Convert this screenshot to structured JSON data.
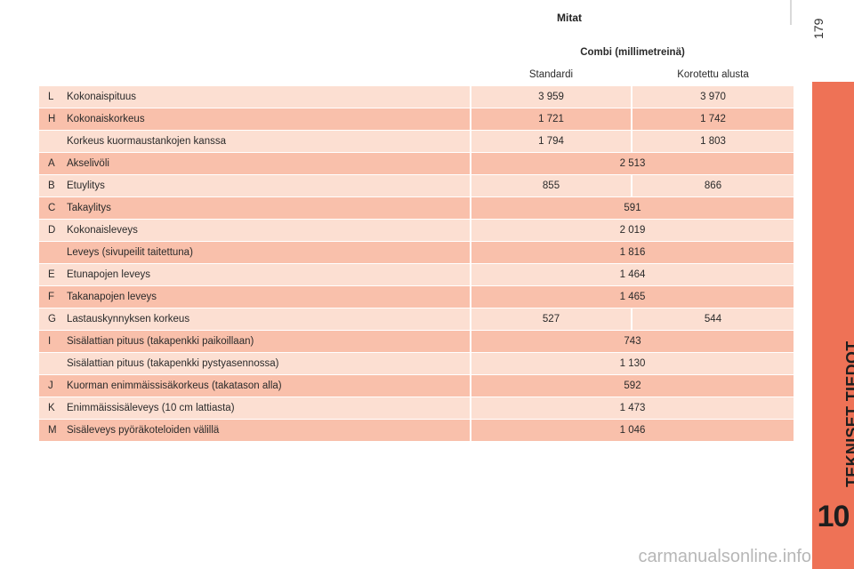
{
  "page": {
    "heading": "Mitat",
    "number": "179",
    "chapter_title": "TEKNISET TIEDOT",
    "chapter_number": "10",
    "watermark": "carmanualsonline.info"
  },
  "table": {
    "header": "Combi (millimetreinä)",
    "subheaders": [
      "Standardi",
      "Korotettu alusta"
    ],
    "rows": [
      {
        "code": "L",
        "label": "Kokonaispituus",
        "a": "3 959",
        "b": "3 970"
      },
      {
        "code": "H",
        "label": "Kokonaiskorkeus",
        "a": "1 721",
        "b": "1 742"
      },
      {
        "code": "",
        "label": "Korkeus kuormaustankojen kanssa",
        "a": "1 794",
        "b": "1 803"
      },
      {
        "code": "A",
        "label": "Akselivöli",
        "a": "2 513"
      },
      {
        "code": "B",
        "label": "Etuylitys",
        "a": "855",
        "b": "866"
      },
      {
        "code": "C",
        "label": "Takaylitys",
        "a": "591"
      },
      {
        "code": "D",
        "label": "Kokonaisleveys",
        "a": "2 019"
      },
      {
        "code": "",
        "label": "Leveys (sivupeilit taitettuna)",
        "a": "1 816"
      },
      {
        "code": "E",
        "label": "Etunapojen leveys",
        "a": "1 464"
      },
      {
        "code": "F",
        "label": "Takanapojen leveys",
        "a": "1 465"
      },
      {
        "code": "G",
        "label": "Lastauskynnyksen korkeus",
        "a": "527",
        "b": "544"
      },
      {
        "code": "I",
        "label": "Sisälattian pituus (takapenkki paikoillaan)",
        "a": "743"
      },
      {
        "code": "",
        "label": "Sisälattian pituus (takapenkki pystyasennossa)",
        "a": "1 130"
      },
      {
        "code": "J",
        "label": "Kuorman enimmäissisäkorkeus (takatason alla)",
        "a": "592"
      },
      {
        "code": "K",
        "label": "Enimmäissisäleveys (10 cm lattiasta)",
        "a": "1 473"
      },
      {
        "code": "M",
        "label": "Sisäleveys pyöräkoteloiden välillä",
        "a": "1 046"
      }
    ]
  }
}
